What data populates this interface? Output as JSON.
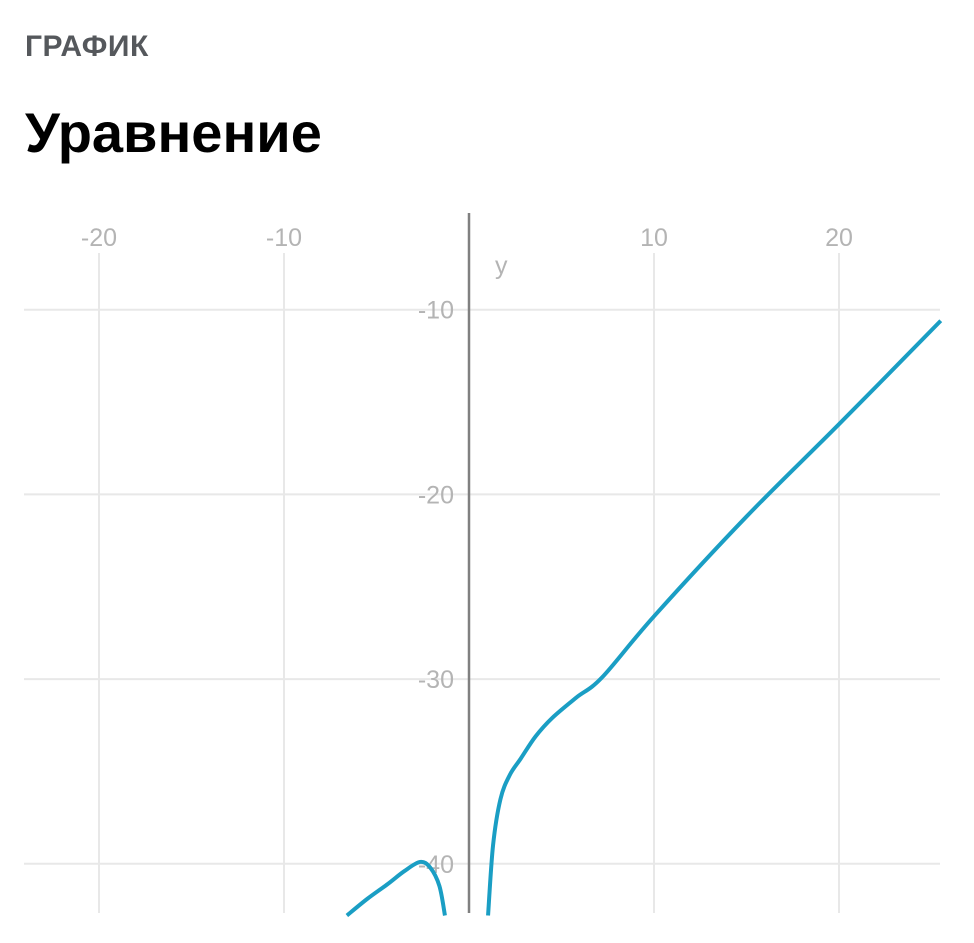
{
  "header": {
    "kicker": "ГРАФИК",
    "title": "Уравнение"
  },
  "chart_data": {
    "type": "line",
    "title": "Уравнение",
    "ylabel": "y",
    "xlabel": "",
    "xlim": [
      -25,
      25.5
    ],
    "ylim": [
      -42.8,
      -5
    ],
    "x_ticks": [
      -20,
      -10,
      10,
      20
    ],
    "x_tick_labels": [
      "-20",
      "-10",
      "10",
      "20"
    ],
    "y_ticks": [
      -10,
      -20,
      -30,
      -40
    ],
    "y_tick_labels": [
      "-10",
      "-20",
      "-30",
      "-40"
    ],
    "grid": true,
    "colors": {
      "line": "#1a9ec4",
      "axis": "#808080",
      "grid": "#e8e8e8",
      "tick": "#b4b4b4"
    },
    "series": [
      {
        "points": [
          [
            -6.6,
            -42.8
          ],
          [
            -5.5,
            -41.9
          ],
          [
            -4.4,
            -41.1
          ],
          [
            -3.5,
            -40.4
          ],
          [
            -2.65,
            -39.9
          ],
          [
            -2.1,
            -40.2
          ],
          [
            -1.6,
            -41.2
          ],
          [
            -1.3,
            -42.8
          ]
        ]
      },
      {
        "points": [
          [
            1.03,
            -42.8
          ],
          [
            1.3,
            -39.0
          ],
          [
            1.7,
            -36.5
          ],
          [
            2.2,
            -35.2
          ],
          [
            2.8,
            -34.3
          ],
          [
            3.6,
            -33.1
          ],
          [
            4.5,
            -32.1
          ],
          [
            5.8,
            -31.0
          ],
          [
            7.2,
            -29.9
          ],
          [
            10,
            -26.6
          ],
          [
            15,
            -21.2
          ],
          [
            20,
            -16.2
          ],
          [
            25.5,
            -10.6
          ]
        ]
      }
    ]
  }
}
